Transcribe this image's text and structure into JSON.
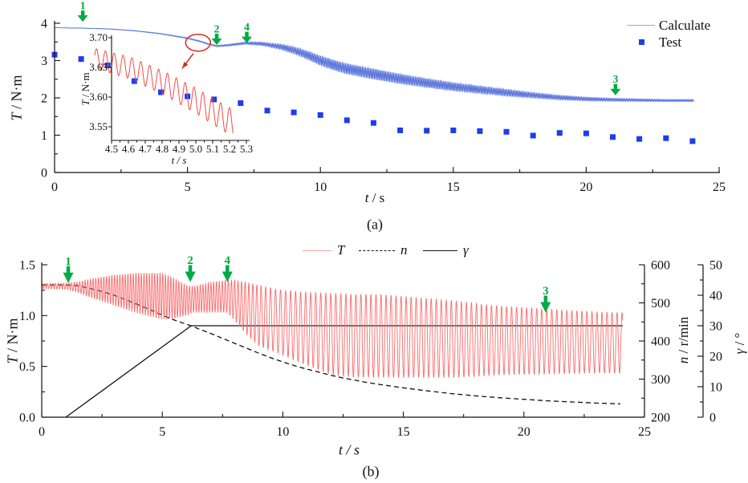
{
  "figure": {
    "background": "#ffffff"
  },
  "colors": {
    "blue_line": "#4a67d8",
    "blue_marker": "#1e3cf0",
    "legend_blue_line": "#9aa9dd",
    "red_curve": "#fa6a6a",
    "red_inset": "#f44a44",
    "red_annotation": "#e42318",
    "legend_red_line": "#fba0a0",
    "green_marker": "#00ab44",
    "axis": "#111111"
  },
  "chart_data": [
    {
      "id": "a",
      "type": "line",
      "caption": "(a)",
      "xlabel": {
        "var": "t",
        "rest": " / s"
      },
      "ylabel": {
        "var": "T",
        "rest": " / N·m"
      },
      "x_axis": {
        "min": 0,
        "max": 25,
        "major_ticks": [
          0,
          5,
          10,
          15,
          20,
          25
        ],
        "tick_labels": [
          "0",
          "5",
          "10",
          "15",
          "20",
          "25"
        ],
        "minor_step": 2.5
      },
      "y_axis": {
        "min": 0,
        "max": 4,
        "major_ticks": [
          0,
          1,
          2,
          3,
          4
        ],
        "tick_labels": [
          "0",
          "1",
          "2",
          "3",
          "4"
        ],
        "minor_step": 0.5
      },
      "legend": {
        "position": "top-right",
        "items": [
          {
            "label": "Calculate",
            "type": "line"
          },
          {
            "label": "Test",
            "type": "square"
          }
        ]
      },
      "series": {
        "calculate": {
          "name": "Calculate",
          "center": [
            [
              0,
              3.88
            ],
            [
              1,
              3.87
            ],
            [
              2,
              3.85
            ],
            [
              3,
              3.8
            ],
            [
              4,
              3.72
            ],
            [
              4.5,
              3.66
            ],
            [
              5,
              3.6
            ],
            [
              5.5,
              3.51
            ],
            [
              5.8,
              3.44
            ],
            [
              6.1,
              3.39
            ],
            [
              6.5,
              3.41
            ],
            [
              7.2,
              3.47
            ],
            [
              7.8,
              3.45
            ],
            [
              8.5,
              3.37
            ],
            [
              9,
              3.28
            ],
            [
              9.5,
              3.15
            ],
            [
              10,
              3.0
            ],
            [
              10.5,
              2.88
            ],
            [
              11,
              2.78
            ],
            [
              12,
              2.64
            ],
            [
              13,
              2.51
            ],
            [
              14,
              2.4
            ],
            [
              15,
              2.3
            ],
            [
              16,
              2.22
            ],
            [
              17,
              2.14
            ],
            [
              18,
              2.07
            ],
            [
              19,
              2.01
            ],
            [
              20,
              1.97
            ],
            [
              21,
              1.95
            ],
            [
              22,
              1.94
            ],
            [
              23,
              1.93
            ],
            [
              24,
              1.93
            ]
          ],
          "amplitude": [
            [
              0,
              0
            ],
            [
              4,
              0.01
            ],
            [
              5,
              0.015
            ],
            [
              6.1,
              0.02
            ],
            [
              7,
              0.03
            ],
            [
              8,
              0.05
            ],
            [
              9,
              0.09
            ],
            [
              10,
              0.13
            ],
            [
              11,
              0.14
            ],
            [
              12,
              0.14
            ],
            [
              13,
              0.13
            ],
            [
              14,
              0.12
            ],
            [
              15,
              0.11
            ],
            [
              16,
              0.1
            ],
            [
              17,
              0.09
            ],
            [
              18,
              0.07
            ],
            [
              19,
              0.06
            ],
            [
              20,
              0.05
            ],
            [
              21,
              0.04
            ],
            [
              22,
              0.035
            ],
            [
              23,
              0.03
            ],
            [
              24,
              0.03
            ]
          ],
          "frequency_hz": 16,
          "t_end": 24.05
        },
        "test": {
          "name": "Test",
          "x": [
            0,
            1,
            2,
            3,
            4,
            5,
            6,
            7,
            8,
            9,
            10,
            11,
            12,
            13,
            14,
            15,
            16,
            17,
            18,
            19,
            20,
            21,
            22,
            23,
            24
          ],
          "y": [
            3.16,
            3.04,
            2.87,
            2.45,
            2.15,
            2.04,
            1.96,
            1.86,
            1.66,
            1.61,
            1.54,
            1.4,
            1.33,
            1.13,
            1.12,
            1.13,
            1.11,
            1.09,
            0.99,
            1.06,
            1.05,
            0.95,
            0.9,
            0.92,
            0.84
          ]
        }
      },
      "annotations": {
        "arrows": [
          {
            "label": "1",
            "t": 1.06,
            "tip_value": 4.04
          },
          {
            "label": "2",
            "t": 6.1,
            "tip_value": 3.42
          },
          {
            "label": "4",
            "t": 7.23,
            "tip_value": 3.47
          },
          {
            "label": "3",
            "t": 21.1,
            "tip_value": 2.07
          }
        ],
        "circle": {
          "t": 5.4,
          "value": 3.48,
          "rx": 15.5,
          "ry": 10.5,
          "arrow_from": {
            "t": 5.22,
            "value": 3.19
          },
          "arrow_to": {
            "t": 4.8,
            "value": 2.79
          }
        }
      },
      "inset": {
        "xlabel": {
          "var": "t",
          "rest": " / s"
        },
        "ylabel": {
          "var": "T",
          "rest": " / N·m"
        },
        "x_axis": {
          "min": 4.5,
          "max": 5.3,
          "major_ticks": [
            4.5,
            4.6,
            4.7,
            4.8,
            4.9,
            5.0,
            5.1,
            5.2,
            5.3
          ],
          "tick_labels": [
            "4.5",
            "4.6",
            "4.7",
            "4.8",
            "4.9",
            "5.0",
            "5.1",
            "5.2",
            "5.3"
          ],
          "minor_step": 0.05
        },
        "y_axis": {
          "min": 3.527,
          "max": 3.7,
          "major_ticks": [
            3.55,
            3.6,
            3.65,
            3.7
          ],
          "tick_labels": [
            "3.55",
            "3.60",
            "3.65",
            "3.70"
          ]
        },
        "curve": {
          "center": [
            [
              4.4,
              3.665
            ],
            [
              4.6,
              3.65
            ],
            [
              4.8,
              3.625
            ],
            [
              5.0,
              3.594
            ],
            [
              5.1,
              3.576
            ],
            [
              5.22,
              3.556
            ]
          ],
          "amplitude": [
            [
              4.4,
              0.017
            ],
            [
              5.22,
              0.023
            ]
          ],
          "frequency_hz": 19,
          "t_start": 4.4,
          "t_end": 5.22
        }
      }
    },
    {
      "id": "b",
      "type": "line",
      "caption": "(b)",
      "xlabel": {
        "var": "t",
        "rest": " / s"
      },
      "ylabel": {
        "var": "T",
        "rest": " / N·m"
      },
      "ylabel_right1": {
        "var": "n",
        "rest": " / r/min"
      },
      "ylabel_right2": {
        "var": "γ",
        "rest": " / °"
      },
      "x_axis": {
        "min": 0,
        "max": 25,
        "major_ticks": [
          0,
          5,
          10,
          15,
          20,
          25
        ],
        "tick_labels": [
          "0",
          "5",
          "10",
          "15",
          "20",
          "25"
        ],
        "minor_step": 2.5
      },
      "y_axis": {
        "min": 0,
        "max": 1.5,
        "major_ticks": [
          0,
          0.5,
          1.0,
          1.5
        ],
        "tick_labels": [
          "0.0",
          "0.5",
          "1.0",
          "1.5"
        ],
        "minor_step": 0.25
      },
      "n_axis": {
        "min": 200,
        "max": 600,
        "major_ticks": [
          200,
          300,
          400,
          500,
          600
        ],
        "tick_labels": [
          "200",
          "300",
          "400",
          "500",
          "600"
        ],
        "minor_step": 50
      },
      "gamma_axis": {
        "min": 0,
        "max": 50,
        "major_ticks": [
          0,
          10,
          20,
          30,
          40,
          50
        ],
        "tick_labels": [
          "0",
          "10",
          "20",
          "30",
          "40",
          "50"
        ],
        "minor_step": 5
      },
      "legend": {
        "position": "top-center",
        "items": [
          {
            "label": "T",
            "type": "line-red"
          },
          {
            "label": "n",
            "type": "line-dashed"
          },
          {
            "label": "γ",
            "type": "line-solid"
          }
        ]
      },
      "series": {
        "T": {
          "name": "T",
          "center": [
            [
              0,
              1.29
            ],
            [
              1,
              1.29
            ],
            [
              2,
              1.27
            ],
            [
              3,
              1.25
            ],
            [
              4,
              1.22
            ],
            [
              5,
              1.19
            ],
            [
              5.5,
              1.17
            ],
            [
              6,
              1.15
            ],
            [
              6.3,
              1.16
            ],
            [
              7,
              1.18
            ],
            [
              7.7,
              1.19
            ],
            [
              8,
              1.15
            ],
            [
              8.5,
              1.07
            ],
            [
              9,
              1.0
            ],
            [
              10,
              0.93
            ],
            [
              11,
              0.87
            ],
            [
              12,
              0.82
            ],
            [
              13,
              0.8
            ],
            [
              14,
              0.8
            ],
            [
              16,
              0.78
            ],
            [
              18,
              0.76
            ],
            [
              20,
              0.75
            ],
            [
              22,
              0.74
            ],
            [
              24,
              0.73
            ]
          ],
          "amplitude": [
            [
              0,
              0.025
            ],
            [
              1,
              0.03
            ],
            [
              1.5,
              0.05
            ],
            [
              2,
              0.09
            ],
            [
              3,
              0.15
            ],
            [
              4,
              0.2
            ],
            [
              5,
              0.23
            ],
            [
              5.5,
              0.2
            ],
            [
              6,
              0.15
            ],
            [
              6.3,
              0.13
            ],
            [
              7,
              0.15
            ],
            [
              7.7,
              0.16
            ],
            [
              8,
              0.2
            ],
            [
              8.5,
              0.26
            ],
            [
              9,
              0.3
            ],
            [
              10,
              0.32
            ],
            [
              11,
              0.36
            ],
            [
              12,
              0.4
            ],
            [
              13,
              0.41
            ],
            [
              14,
              0.41
            ],
            [
              15,
              0.4
            ],
            [
              16,
              0.39
            ],
            [
              17,
              0.38
            ],
            [
              18,
              0.36
            ],
            [
              19,
              0.34
            ],
            [
              20,
              0.33
            ],
            [
              21,
              0.32
            ],
            [
              22,
              0.31
            ],
            [
              23,
              0.3
            ],
            [
              24,
              0.3
            ]
          ],
          "frequency_hz": [
            [
              0,
              9
            ],
            [
              7,
              9
            ],
            [
              9.5,
              4.8
            ],
            [
              24.1,
              4.8
            ]
          ],
          "t_end": 24.1
        },
        "n": {
          "name": "n",
          "unit": "r/min",
          "points": [
            [
              0,
              547
            ],
            [
              1,
              547
            ],
            [
              1.5,
              545
            ],
            [
              2,
              538
            ],
            [
              2.5,
              530
            ],
            [
              3,
              520
            ],
            [
              3.5,
              508
            ],
            [
              4,
              495
            ],
            [
              4.5,
              482
            ],
            [
              5,
              468
            ],
            [
              5.5,
              455
            ],
            [
              6,
              444
            ],
            [
              6.2,
              440
            ],
            [
              6.5,
              432
            ],
            [
              7,
              420
            ],
            [
              7.5,
              407
            ],
            [
              8,
              394
            ],
            [
              8.5,
              381
            ],
            [
              9,
              368
            ],
            [
              9.5,
              356
            ],
            [
              10,
              345
            ],
            [
              10.5,
              335
            ],
            [
              11,
              326
            ],
            [
              11.5,
              318
            ],
            [
              12,
              310
            ],
            [
              12.5,
              303
            ],
            [
              13,
              297
            ],
            [
              13.5,
              291
            ],
            [
              14,
              286
            ],
            [
              15,
              277
            ],
            [
              16,
              269
            ],
            [
              17,
              262
            ],
            [
              18,
              256
            ],
            [
              19,
              251
            ],
            [
              20,
              247
            ],
            [
              21,
              243
            ],
            [
              22,
              240
            ],
            [
              23,
              237
            ],
            [
              24,
              235
            ]
          ]
        },
        "gamma": {
          "name": "γ",
          "unit": "deg",
          "points": [
            [
              1,
              0
            ],
            [
              6.2,
              30
            ],
            [
              24.1,
              30
            ]
          ]
        }
      },
      "annotations": {
        "arrows": [
          {
            "label": "1",
            "t": 1.1,
            "tip_value": 1.32
          },
          {
            "label": "2",
            "t": 6.16,
            "tip_value": 1.33
          },
          {
            "label": "4",
            "t": 7.7,
            "tip_value": 1.33
          },
          {
            "label": "3",
            "t": 20.9,
            "tip_value": 1.03
          }
        ]
      }
    }
  ]
}
